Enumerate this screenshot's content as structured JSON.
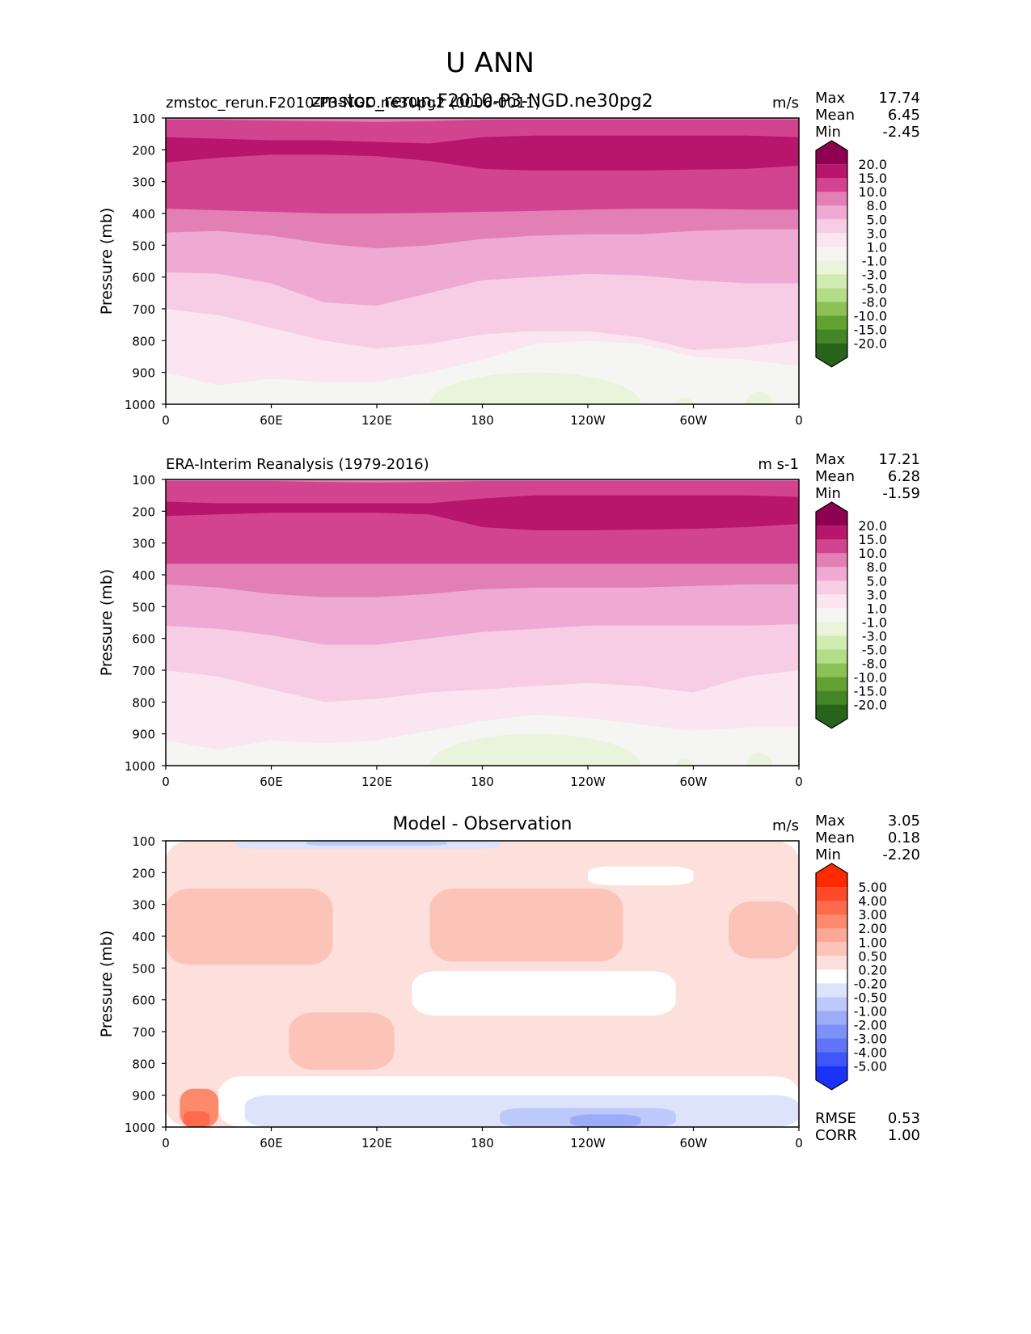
{
  "figure_title": "U ANN",
  "colormaps": {
    "field": {
      "levels": [
        "20.0",
        "15.0",
        "10.0",
        "8.0",
        "5.0",
        "3.0",
        "1.0",
        "-1.0",
        "-3.0",
        "-5.0",
        "-8.0",
        "-10.0",
        "-15.0",
        "-20.0"
      ],
      "colors": [
        "#8e0152",
        "#b8156d",
        "#d2448f",
        "#e27fb4",
        "#eeaad3",
        "#f7cde6",
        "#fae5f0",
        "#f5f5f4",
        "#e9f4da",
        "#d1ecb1",
        "#b3dd86",
        "#8bc157",
        "#63a232",
        "#448526",
        "#276419"
      ]
    },
    "diff": {
      "levels": [
        "5.00",
        "4.00",
        "3.00",
        "2.00",
        "1.00",
        "0.50",
        "0.20",
        "-0.20",
        "-0.50",
        "-1.00",
        "-2.00",
        "-3.00",
        "-4.00",
        "-5.00"
      ],
      "colors": [
        "#ff2a00",
        "#ff4a2a",
        "#fd6a4c",
        "#fd8a6c",
        "#fca896",
        "#fcc4b8",
        "#fde0db",
        "#ffffff",
        "#dde3fb",
        "#bcc9fb",
        "#9dacf9",
        "#7d91f8",
        "#5f74f7",
        "#3f57f8",
        "#1a33fb"
      ]
    }
  },
  "chart_data": [
    {
      "type": "heatmap",
      "panel": "test",
      "title_left": "zmstoc_rerun.F2010-P3-NGD.ne30pg2 (0006-0011)",
      "title_center": "zmstoc_rerun.F2010-P3-NGD.ne30pg2",
      "units": "m/s",
      "stats": [
        {
          "label": "Max",
          "value": "17.74"
        },
        {
          "label": "Mean",
          "value": "6.45"
        },
        {
          "label": "Min",
          "value": "-2.45"
        }
      ],
      "ylabel": "Pressure (mb)",
      "yticks": [
        "100",
        "200",
        "300",
        "400",
        "500",
        "600",
        "700",
        "800",
        "900",
        "1000"
      ],
      "ylim": [
        1000,
        100
      ],
      "xticks": [
        "0",
        "60E",
        "120E",
        "180",
        "120W",
        "60W",
        "0"
      ],
      "xlim": [
        0,
        360
      ],
      "colormap": "field",
      "colorbar_labels": [
        "20.0",
        "15.0",
        "10.0",
        "8.0",
        "5.0",
        "3.0",
        "1.0",
        "-1.0",
        "-3.0",
        "-5.0",
        "-8.0",
        "-10.0",
        "-15.0",
        "-20.0"
      ],
      "longitudes": [
        0,
        30,
        60,
        90,
        120,
        150,
        180,
        210,
        240,
        270,
        300,
        330,
        360
      ],
      "band_boundaries_mb": [
        {
          "color_index": 1,
          "top": [
            160,
            165,
            170,
            170,
            175,
            180,
            160,
            155,
            155,
            155,
            155,
            155,
            160
          ],
          "bottom": [
            240,
            225,
            215,
            215,
            220,
            235,
            260,
            265,
            265,
            265,
            262,
            260,
            250
          ]
        },
        {
          "color_index": 2,
          "top": [
            105,
            105,
            108,
            110,
            112,
            110,
            105,
            105,
            105,
            105,
            105,
            105,
            105
          ],
          "bottom": [
            385,
            390,
            395,
            400,
            400,
            398,
            395,
            392,
            388,
            385,
            385,
            388,
            388
          ]
        },
        {
          "color_index": 3,
          "bottom": [
            460,
            455,
            470,
            495,
            510,
            500,
            480,
            470,
            465,
            465,
            455,
            450,
            450
          ]
        },
        {
          "color_index": 4,
          "bottom": [
            585,
            590,
            620,
            680,
            690,
            650,
            610,
            600,
            590,
            595,
            610,
            620,
            620
          ]
        },
        {
          "color_index": 5,
          "bottom": [
            700,
            720,
            760,
            800,
            825,
            810,
            780,
            770,
            770,
            790,
            830,
            820,
            800
          ]
        },
        {
          "color_index": 6,
          "bottom": [
            900,
            940,
            920,
            930,
            930,
            900,
            860,
            810,
            800,
            810,
            850,
            860,
            880
          ]
        }
      ]
    },
    {
      "type": "heatmap",
      "panel": "reference",
      "title_left": "ERA-Interim Reanalysis (1979-2016)",
      "units": "m s-1",
      "stats": [
        {
          "label": "Max",
          "value": "17.21"
        },
        {
          "label": "Mean",
          "value": "6.28"
        },
        {
          "label": "Min",
          "value": "-1.59"
        }
      ],
      "ylabel": "Pressure (mb)",
      "yticks": [
        "100",
        "200",
        "300",
        "400",
        "500",
        "600",
        "700",
        "800",
        "900",
        "1000"
      ],
      "ylim": [
        1000,
        100
      ],
      "xticks": [
        "0",
        "60E",
        "120E",
        "180",
        "120W",
        "60W",
        "0"
      ],
      "xlim": [
        0,
        360
      ],
      "colormap": "field",
      "colorbar_labels": [
        "20.0",
        "15.0",
        "10.0",
        "8.0",
        "5.0",
        "3.0",
        "1.0",
        "-1.0",
        "-3.0",
        "-5.0",
        "-8.0",
        "-10.0",
        "-15.0",
        "-20.0"
      ],
      "longitudes": [
        0,
        30,
        60,
        90,
        120,
        150,
        180,
        210,
        240,
        270,
        300,
        330,
        360
      ],
      "band_boundaries_mb": [
        {
          "color_index": 1,
          "top": [
            170,
            175,
            175,
            175,
            175,
            175,
            160,
            150,
            150,
            150,
            150,
            150,
            155
          ],
          "bottom": [
            215,
            210,
            205,
            205,
            205,
            210,
            250,
            260,
            260,
            258,
            255,
            250,
            240
          ]
        },
        {
          "color_index": 2,
          "top": [
            105,
            105,
            105,
            108,
            110,
            108,
            105,
            105,
            105,
            105,
            105,
            105,
            105
          ],
          "bottom": [
            365,
            365,
            365,
            365,
            365,
            365,
            365,
            365,
            365,
            365,
            365,
            365,
            365
          ]
        },
        {
          "color_index": 3,
          "bottom": [
            430,
            440,
            460,
            470,
            470,
            460,
            445,
            440,
            440,
            440,
            435,
            430,
            430
          ]
        },
        {
          "color_index": 4,
          "bottom": [
            560,
            570,
            590,
            620,
            620,
            600,
            580,
            570,
            560,
            560,
            560,
            560,
            555
          ]
        },
        {
          "color_index": 5,
          "bottom": [
            700,
            720,
            760,
            800,
            790,
            770,
            760,
            750,
            740,
            750,
            770,
            720,
            700
          ]
        },
        {
          "color_index": 6,
          "bottom": [
            920,
            950,
            920,
            930,
            920,
            890,
            860,
            840,
            850,
            870,
            890,
            880,
            880
          ]
        }
      ]
    },
    {
      "type": "heatmap",
      "panel": "difference",
      "title_center": "Model - Observation",
      "units": "m/s",
      "stats": [
        {
          "label": "Max",
          "value": "3.05"
        },
        {
          "label": "Mean",
          "value": "0.18"
        },
        {
          "label": "Min",
          "value": "-2.20"
        }
      ],
      "extra_stats": [
        {
          "label": "RMSE",
          "value": "0.53"
        },
        {
          "label": "CORR",
          "value": "1.00"
        }
      ],
      "ylabel": "Pressure (mb)",
      "yticks": [
        "100",
        "200",
        "300",
        "400",
        "500",
        "600",
        "700",
        "800",
        "900",
        "1000"
      ],
      "ylim": [
        1000,
        100
      ],
      "xticks": [
        "0",
        "60E",
        "120E",
        "180",
        "120W",
        "60W",
        "0"
      ],
      "xlim": [
        0,
        360
      ],
      "colormap": "diff",
      "colorbar_labels": [
        "5.00",
        "4.00",
        "3.00",
        "2.00",
        "1.00",
        "0.50",
        "0.20",
        "-0.20",
        "-0.50",
        "-1.00",
        "-2.00",
        "-3.00",
        "-4.00",
        "-5.00"
      ],
      "regions": [
        {
          "color_index": 6,
          "lon": [
            0,
            360
          ],
          "p": [
            100,
            1000
          ]
        },
        {
          "color_index": 5,
          "lon": [
            0,
            95
          ],
          "p": [
            250,
            490
          ]
        },
        {
          "color_index": 5,
          "lon": [
            150,
            260
          ],
          "p": [
            250,
            480
          ]
        },
        {
          "color_index": 5,
          "lon": [
            320,
            360
          ],
          "p": [
            290,
            470
          ]
        },
        {
          "color_index": 5,
          "lon": [
            70,
            130
          ],
          "p": [
            640,
            820
          ]
        },
        {
          "color_index": 7,
          "lon": [
            140,
            290
          ],
          "p": [
            510,
            650
          ]
        },
        {
          "color_index": 7,
          "lon": [
            30,
            360
          ],
          "p": [
            840,
            1000
          ]
        },
        {
          "color_index": 7,
          "lon": [
            240,
            300
          ],
          "p": [
            180,
            240
          ]
        },
        {
          "color_index": 8,
          "lon": [
            45,
            360
          ],
          "p": [
            900,
            1000
          ]
        },
        {
          "color_index": 9,
          "lon": [
            190,
            290
          ],
          "p": [
            940,
            1000
          ]
        },
        {
          "color_index": 10,
          "lon": [
            230,
            270
          ],
          "p": [
            960,
            1000
          ]
        },
        {
          "color_index": 8,
          "lon": [
            40,
            190
          ],
          "p": [
            100,
            125
          ]
        },
        {
          "color_index": 9,
          "lon": [
            80,
            160
          ],
          "p": [
            100,
            115
          ]
        },
        {
          "color_index": 3,
          "lon": [
            8,
            30
          ],
          "p": [
            880,
            1000
          ]
        },
        {
          "color_index": 2,
          "lon": [
            10,
            25
          ],
          "p": [
            950,
            1000
          ]
        }
      ]
    }
  ]
}
